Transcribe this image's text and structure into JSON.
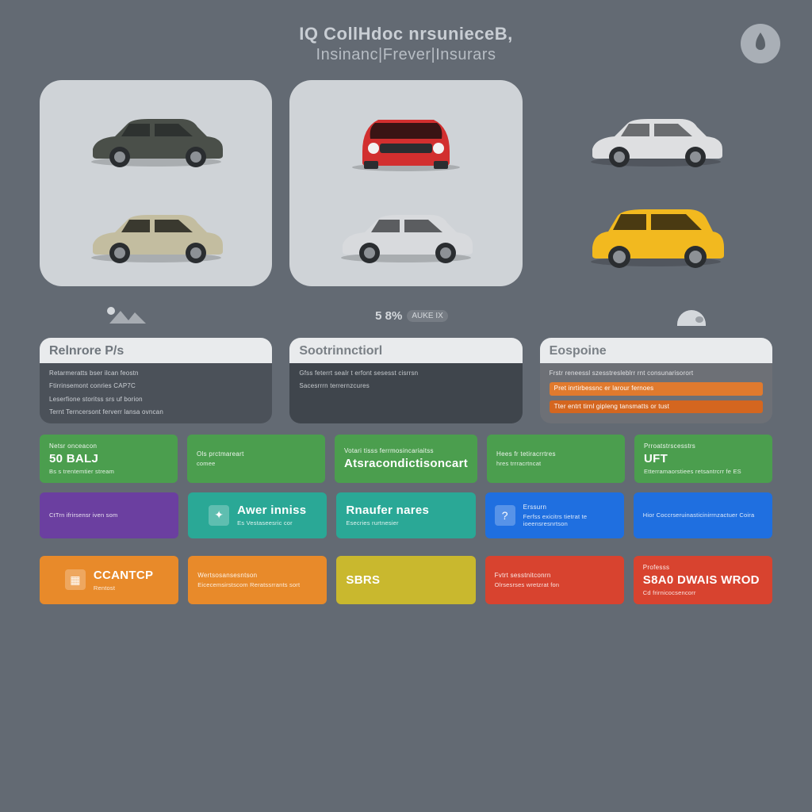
{
  "colors": {
    "page_bg": "#636a73",
    "title_color": "#c9ced4",
    "subtitle_color": "#b7bdc4",
    "logo_bg": "#a9afb6",
    "logo_fg": "#5b6269",
    "car_tile_bg": "#cfd3d7",
    "car_tile_3_bg": "transparent",
    "plan_head_bg": "#e9ebed",
    "plan_head_text": "#6f767d",
    "plan_body_bg": "#4b5159",
    "plan_body_text": "#cdd1d6",
    "plan3_head_bg": "#e9ebed",
    "plan3_body_bg": "#6d7076",
    "plan3_accent1": "#e07a2e",
    "plan3_accent2": "#d4661f",
    "center_stat_text": "#d4d8dc"
  },
  "header": {
    "line1": "IQ CollHdoc nrsunieceB,",
    "line2": "Insinanc|Frever|Insurars"
  },
  "logo_label": "Carinsure",
  "cars": [
    {
      "bg": "#cfd3d7",
      "top_color": "#4a4f49",
      "bottom_color": "#c3bda0"
    },
    {
      "bg": "#cfd3d7",
      "top_color": "#d22f2f",
      "bottom_color": "#d8dadd"
    },
    {
      "bg": "transparent",
      "top_color": "#dedfe1",
      "bottom_color": "#f2b91f"
    }
  ],
  "center_stat": {
    "value": "5 8%",
    "sub": "AUKE IX"
  },
  "plans": [
    {
      "title": "Relnrore P/s",
      "head_bg": "#e9ebed",
      "head_text": "#6f767d",
      "body_bg": "#4b5159",
      "body_text": "#cdd1d6",
      "lines": [
        "Retarmeratts bser ilcan feostn",
        "Ftirrinsemont conries  CAP7C",
        "Leserfione storitss srs uf borion",
        "Ternt  Terncersont ferverr lansa ovncan"
      ]
    },
    {
      "title": "Sootrinnctiorl",
      "head_bg": "#e9ebed",
      "head_text": "#7a8086",
      "body_bg": "#3f454c",
      "body_text": "#c6cace",
      "lines": [
        "Gfss feterrt sealr t erfont sesesst cisrrsn",
        "Sacesrrrn terrernzcures"
      ]
    },
    {
      "title": "Eospoine",
      "head_bg": "#e9ebed",
      "head_text": "#7a8086",
      "body_bg": "#6d7076",
      "body_text": "#dfe0e3",
      "lines": [
        "Frstr reneessl  szesstresleblrr rnt consunarisorort",
        "Pret  inrtirbessnc er larour fernoes",
        "Tter  entrt tirnl gipleng tansmatts or tust"
      ],
      "accent_colors": [
        "#e07a2e",
        "#d4661f"
      ]
    }
  ],
  "grid_rows": [
    [
      {
        "bg": "#4b9e4e",
        "top": "Netsr onceacon",
        "main": "50 BALJ",
        "sub": "Bs s trentemtier stream"
      },
      {
        "bg": "#4b9e4e",
        "top": "Ols prctmareart",
        "main": "",
        "sub": "comee"
      },
      {
        "bg": "#4b9e4e",
        "top": "Votari tisss ferrmosincariaitss",
        "main": "Atsracondictisoncart",
        "sub": ""
      },
      {
        "bg": "#4b9e4e",
        "top": "Hees fr tetiracrrtres",
        "main": "",
        "sub": "hres trrracrtncat"
      },
      {
        "bg": "#4b9e4e",
        "top": "Prroatstrscesstrs",
        "main": "UFT",
        "sub": "Etterramaorstiees retsantrcrr fe   ES"
      }
    ],
    [
      {
        "bg": "#6b3fa0",
        "top": "",
        "main": "",
        "sub": "CtTrn ifrirsensr iven som"
      },
      {
        "bg": "#2aa896",
        "icon": "✦",
        "top": "",
        "main": "Awer inniss",
        "sub": "Es  Vestaseesric cor"
      },
      {
        "bg": "#2aa896",
        "top": "",
        "main": "Rnaufer nares",
        "sub": "Esecries rurtnesier"
      },
      {
        "bg": "#1f6fe0",
        "icon": "?",
        "top": "Erssurn",
        "main": "",
        "sub": "Ferfss exicitrs tietrat te ioeensresnrtson"
      },
      {
        "bg": "#1f6fe0",
        "top": "",
        "main": "",
        "sub": "Hior  Coccrseruinasticinirrnzactuer Coira"
      }
    ],
    [
      {
        "bg": "#e88a2a",
        "icon": "▦",
        "top": "",
        "main": "CCANTCP",
        "sub": "Rentost"
      },
      {
        "bg": "#e88a2a",
        "top": "Wertsosansesntson",
        "main": "",
        "sub": "Eicecemsirstscom  Reratssrrants sort"
      },
      {
        "bg": "#c9b82e",
        "top": "",
        "main": "SBRS",
        "sub": ""
      },
      {
        "bg": "#d8432f",
        "top": "Fvtrt sesstnitconrn",
        "main": "",
        "sub": "Olrsesrses wretzrat fon"
      },
      {
        "bg": "#d8432f",
        "top": "Professs",
        "main": "S8A0 DWAIS WROD",
        "sub": "Cd frirnicocsencorr"
      }
    ]
  ]
}
